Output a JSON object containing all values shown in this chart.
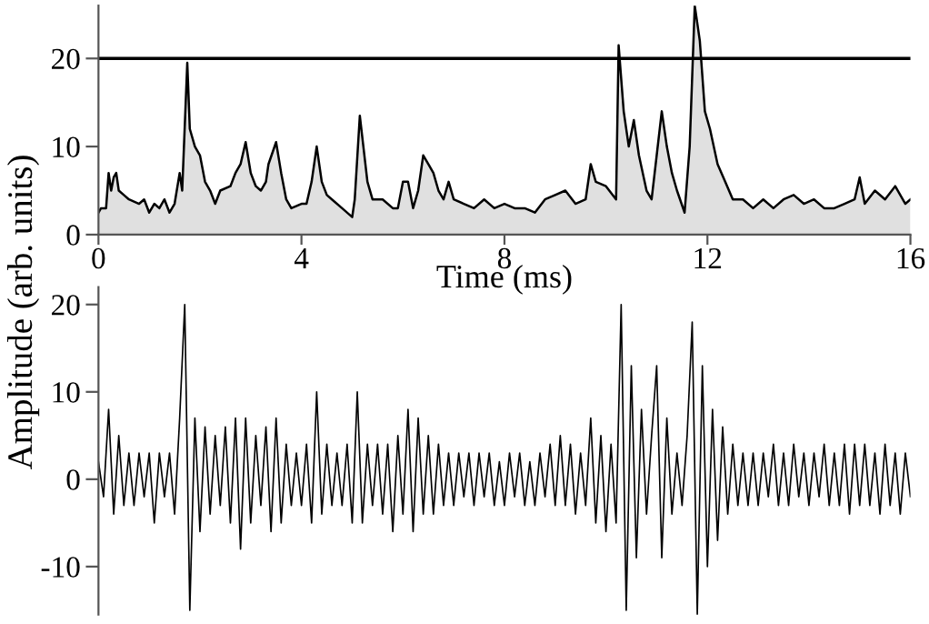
{
  "chart_data": [
    {
      "type": "area",
      "xlabel": "Time (ms)",
      "xlim": [
        0,
        16
      ],
      "xticks": [
        0,
        4,
        8,
        12,
        16
      ],
      "ylim": [
        0,
        26
      ],
      "yticks": [
        0,
        10,
        20
      ],
      "grid": false,
      "legend": false,
      "ref_lines": [
        {
          "axis": "y",
          "value": 20,
          "color": "#000000"
        }
      ],
      "series": [
        {
          "color": "#000000",
          "x": [
            0,
            0.05,
            0.15,
            0.2,
            0.25,
            0.3,
            0.35,
            0.4,
            0.5,
            0.6,
            0.8,
            0.9,
            1.0,
            1.1,
            1.2,
            1.3,
            1.4,
            1.5,
            1.6,
            1.65,
            1.75,
            1.8,
            1.9,
            2.0,
            2.1,
            2.2,
            2.3,
            2.4,
            2.6,
            2.7,
            2.8,
            2.9,
            3.0,
            3.1,
            3.2,
            3.3,
            3.35,
            3.5,
            3.6,
            3.7,
            3.8,
            4.0,
            4.1,
            4.2,
            4.3,
            4.4,
            4.5,
            4.6,
            4.8,
            5.0,
            5.05,
            5.15,
            5.3,
            5.4,
            5.6,
            5.8,
            5.9,
            6.0,
            6.1,
            6.2,
            6.3,
            6.4,
            6.5,
            6.6,
            6.7,
            6.8,
            6.9,
            7.0,
            7.2,
            7.4,
            7.6,
            7.8,
            8.0,
            8.2,
            8.4,
            8.6,
            8.8,
            9.0,
            9.2,
            9.4,
            9.6,
            9.7,
            9.8,
            10.0,
            10.2,
            10.25,
            10.35,
            10.45,
            10.55,
            10.65,
            10.8,
            10.9,
            11.0,
            11.1,
            11.2,
            11.3,
            11.4,
            11.55,
            11.65,
            11.75,
            11.85,
            11.95,
            12.05,
            12.2,
            12.35,
            12.5,
            12.7,
            12.9,
            13.1,
            13.3,
            13.5,
            13.7,
            13.9,
            14.1,
            14.3,
            14.5,
            14.7,
            14.9,
            15.0,
            15.1,
            15.3,
            15.5,
            15.7,
            15.9,
            16.0
          ],
          "values": [
            2.5,
            3,
            3,
            7,
            5,
            6.5,
            7,
            5,
            4.5,
            4,
            3.5,
            4,
            2.5,
            3.5,
            3,
            4,
            2.5,
            3.5,
            7,
            5,
            19.5,
            12,
            10,
            9,
            6,
            5,
            3.5,
            5,
            5.5,
            7,
            8,
            10.5,
            7,
            5.5,
            5,
            6,
            8,
            10.5,
            7,
            4,
            3,
            3.5,
            3.5,
            6,
            10,
            6,
            4.5,
            4,
            3,
            2,
            4,
            13.5,
            6,
            4,
            4,
            3,
            3,
            6,
            6,
            3,
            5,
            9,
            8,
            7,
            5,
            4,
            6,
            4,
            3.5,
            3,
            4,
            3,
            3.5,
            3,
            3,
            2.5,
            4,
            4.5,
            5,
            3.5,
            4,
            8,
            6,
            5.5,
            4,
            21.5,
            14,
            10,
            13,
            9,
            5,
            4,
            9,
            14,
            10,
            7,
            5,
            2.5,
            10,
            26,
            22,
            14,
            12,
            8,
            6,
            4,
            4,
            3,
            4,
            3,
            4,
            4.5,
            3.5,
            4,
            3,
            3,
            3.5,
            4,
            6.5,
            3.5,
            5,
            4,
            5.5,
            3.5,
            4
          ]
        }
      ]
    },
    {
      "type": "line",
      "ylabel": "Amplitude (arb. units)",
      "xlim": [
        0,
        16
      ],
      "ylim": [
        -15.5,
        22
      ],
      "yticks": [
        -10,
        0,
        10,
        20
      ],
      "tick_labels": "y",
      "grid": false,
      "legend": false,
      "series": [
        {
          "color": "#000000",
          "x": [
            0,
            0.1,
            0.2,
            0.3,
            0.4,
            0.5,
            0.6,
            0.7,
            0.8,
            0.9,
            1.0,
            1.1,
            1.2,
            1.3,
            1.4,
            1.5,
            1.6,
            1.7,
            1.8,
            1.9,
            2.0,
            2.1,
            2.2,
            2.3,
            2.4,
            2.5,
            2.6,
            2.7,
            2.8,
            2.9,
            3.0,
            3.1,
            3.2,
            3.3,
            3.4,
            3.5,
            3.6,
            3.7,
            3.8,
            3.9,
            4.0,
            4.1,
            4.2,
            4.3,
            4.4,
            4.5,
            4.6,
            4.7,
            4.8,
            4.9,
            5.0,
            5.1,
            5.2,
            5.3,
            5.4,
            5.5,
            5.6,
            5.7,
            5.8,
            5.9,
            6.0,
            6.1,
            6.2,
            6.3,
            6.4,
            6.5,
            6.6,
            6.7,
            6.8,
            6.9,
            7.0,
            7.1,
            7.2,
            7.3,
            7.4,
            7.5,
            7.6,
            7.7,
            7.8,
            7.9,
            8.0,
            8.1,
            8.2,
            8.3,
            8.4,
            8.5,
            8.6,
            8.7,
            8.8,
            8.9,
            9.0,
            9.1,
            9.2,
            9.3,
            9.4,
            9.5,
            9.6,
            9.7,
            9.8,
            9.9,
            10.0,
            10.1,
            10.2,
            10.3,
            10.4,
            10.5,
            10.6,
            10.7,
            10.8,
            10.9,
            11.0,
            11.1,
            11.2,
            11.3,
            11.4,
            11.5,
            11.6,
            11.7,
            11.8,
            11.9,
            12.0,
            12.1,
            12.2,
            12.3,
            12.4,
            12.5,
            12.6,
            12.7,
            12.8,
            12.9,
            13.0,
            13.1,
            13.2,
            13.3,
            13.4,
            13.5,
            13.6,
            13.7,
            13.8,
            13.9,
            14.0,
            14.1,
            14.2,
            14.3,
            14.4,
            14.5,
            14.6,
            14.7,
            14.8,
            14.9,
            15.0,
            15.1,
            15.2,
            15.3,
            15.4,
            15.5,
            15.6,
            15.7,
            15.8,
            15.9,
            16.0
          ],
          "values": [
            2,
            -2,
            8,
            -4,
            5,
            -3,
            3,
            -3,
            3,
            -2,
            3,
            -5,
            3,
            -2,
            3,
            -4,
            7,
            20,
            -15,
            7,
            -6,
            6,
            -4,
            5,
            -3,
            6,
            -5,
            7,
            -8,
            7,
            -5,
            5,
            -3,
            6,
            -6,
            7,
            -5,
            4,
            -3,
            3,
            -3,
            4,
            -5,
            10,
            -4,
            4,
            -3,
            3,
            -3,
            4,
            -5,
            10,
            -5,
            4,
            -3,
            4,
            -4,
            4,
            -6,
            5,
            -4,
            8,
            -6,
            7,
            -4,
            5,
            -4,
            4,
            -3,
            3,
            -3,
            3,
            -2,
            3,
            -3,
            3,
            -2,
            3,
            -3,
            2,
            -3,
            3,
            -2,
            3,
            -3,
            2,
            -3,
            3,
            -2,
            4,
            -3,
            5,
            -3,
            4,
            -4,
            3,
            -3,
            7,
            -5,
            5,
            -6,
            4,
            -5,
            20,
            -15,
            13,
            -9,
            8,
            -4,
            5,
            13,
            -9,
            7,
            -4,
            3,
            -3,
            5,
            18,
            -15.5,
            13,
            -10,
            8,
            -7,
            6,
            -4,
            4,
            -3,
            3,
            -3,
            3,
            -3,
            3,
            -2,
            4,
            -3,
            3,
            -3,
            4,
            -2,
            3,
            -3,
            3,
            -2,
            4,
            -3,
            3,
            -3,
            4,
            -4,
            4,
            -3,
            4,
            -3,
            3,
            -4,
            4,
            -3,
            3,
            -4,
            3,
            -2
          ]
        }
      ]
    }
  ]
}
